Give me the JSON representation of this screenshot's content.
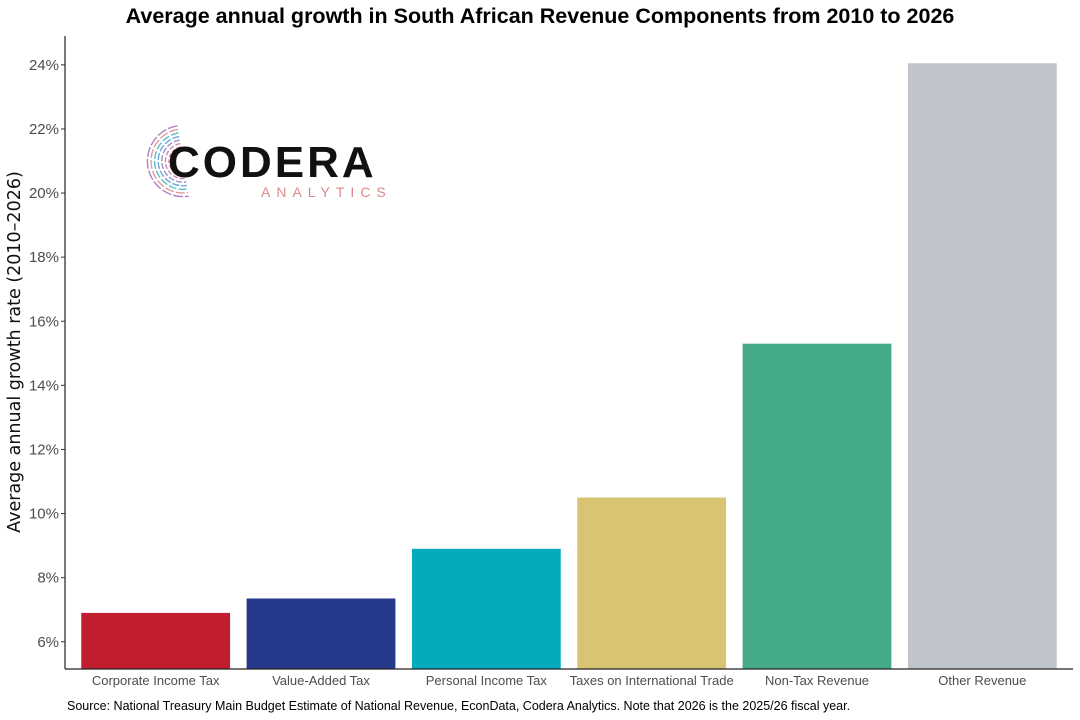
{
  "chart_data": {
    "type": "bar",
    "title": "Average annual growth in South African Revenue Components from 2010 to 2026",
    "xlabel": "",
    "ylabel": "Average annual growth rate (2010–2026)",
    "categories": [
      "Corporate Income Tax",
      "Value-Added Tax",
      "Personal Income Tax",
      "Taxes on International Trade",
      "Non-Tax Revenue",
      "Other Revenue"
    ],
    "values": [
      6.9,
      7.35,
      8.9,
      10.5,
      15.3,
      24.05
    ],
    "colors": [
      "#c01e2f",
      "#263a8b",
      "#05abbc",
      "#d8c473",
      "#45aa8a",
      "#c0c4cb"
    ],
    "ylim": [
      5.15,
      24.9
    ],
    "yticks": [
      6,
      8,
      10,
      12,
      14,
      16,
      18,
      20,
      22,
      24
    ],
    "ytick_labels": [
      "6%",
      "8%",
      "10%",
      "12%",
      "14%",
      "16%",
      "18%",
      "20%",
      "22%",
      "24%"
    ],
    "grid": false,
    "legend": "none"
  },
  "logo": {
    "word": "CODERA",
    "sub": "ANALYTICS"
  },
  "source_note": "Source: National Treasury Main Budget Estimate of National Revenue, EconData, Codera Analytics. Note that 2026 is the 2025/26 fiscal year."
}
